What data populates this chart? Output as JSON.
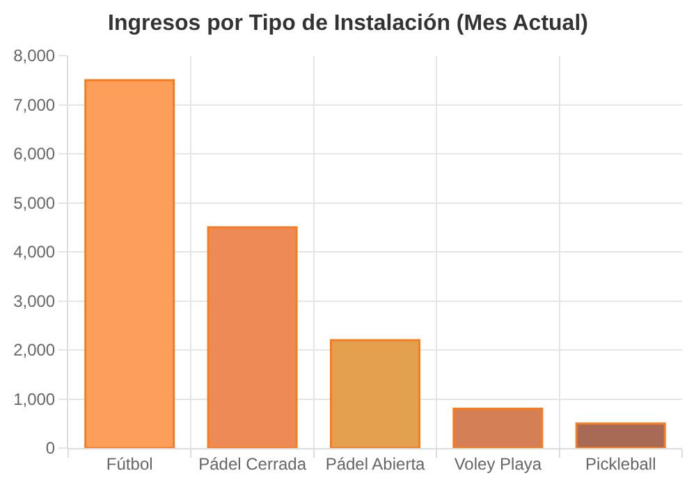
{
  "chart_data": {
    "type": "bar",
    "title": "Ingresos por Tipo de Instalación (Mes Actual)",
    "categories": [
      "Fútbol",
      "Pádel Cerrada",
      "Pádel Abierta",
      "Voley Playa",
      "Pickleball"
    ],
    "values": [
      7500,
      4500,
      2200,
      800,
      500
    ],
    "colors": [
      "#fd9f5b",
      "#ee8a55",
      "#e3a04f",
      "#d47f55",
      "#a96a55"
    ],
    "ylim": [
      0,
      8000
    ],
    "yticks": [
      {
        "value": 0,
        "label": "0"
      },
      {
        "value": 1000,
        "label": "1,000"
      },
      {
        "value": 2000,
        "label": "2,000"
      },
      {
        "value": 3000,
        "label": "3,000"
      },
      {
        "value": 4000,
        "label": "4,000"
      },
      {
        "value": 5000,
        "label": "5,000"
      },
      {
        "value": 6000,
        "label": "6,000"
      },
      {
        "value": 7000,
        "label": "7,000"
      },
      {
        "value": 8000,
        "label": "8,000"
      }
    ],
    "grid": true
  }
}
